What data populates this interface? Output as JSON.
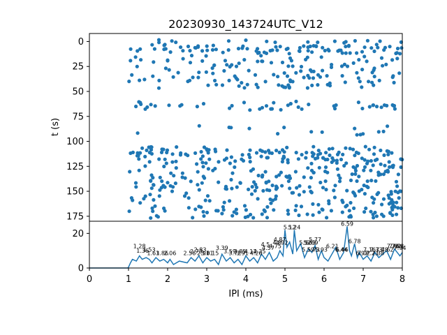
{
  "chart_data": [
    {
      "type": "scatter",
      "title": "20230930_143724UTC_V12",
      "xlabel": "",
      "ylabel": "t (s)",
      "xlim": [
        0,
        8
      ],
      "ylim": [
        180,
        -8
      ],
      "y_inverted": true,
      "yticks": [
        "0",
        "25",
        "50",
        "75",
        "100",
        "125",
        "150",
        "175"
      ],
      "color": "#1f77b4",
      "marker": "filled circle",
      "x_range_of_points": [
        1,
        8
      ],
      "row_bands": [
        {
          "t": 0,
          "density": 0.2
        },
        {
          "t": 5,
          "density": 0.35
        },
        {
          "t": 8,
          "density": 0.45
        },
        {
          "t": 11,
          "density": 0.35
        },
        {
          "t": 16,
          "density": 0.2
        },
        {
          "t": 20,
          "density": 0.25
        },
        {
          "t": 25,
          "density": 0.3
        },
        {
          "t": 30,
          "density": 0.25
        },
        {
          "t": 35,
          "density": 0.3
        },
        {
          "t": 40,
          "density": 0.3
        },
        {
          "t": 45,
          "density": 0.35
        },
        {
          "t": 62,
          "density": 0.2
        },
        {
          "t": 64,
          "density": 0.25
        },
        {
          "t": 67,
          "density": 0.2
        },
        {
          "t": 86,
          "density": 0.08
        },
        {
          "t": 92,
          "density": 0.12
        },
        {
          "t": 107,
          "density": 0.35
        },
        {
          "t": 110,
          "density": 0.4
        },
        {
          "t": 113,
          "density": 0.45
        },
        {
          "t": 117,
          "density": 0.45
        },
        {
          "t": 121,
          "density": 0.4
        },
        {
          "t": 126,
          "density": 0.4
        },
        {
          "t": 131,
          "density": 0.35
        },
        {
          "t": 135,
          "density": 0.35
        },
        {
          "t": 140,
          "density": 0.4
        },
        {
          "t": 145,
          "density": 0.4
        },
        {
          "t": 149,
          "density": 0.35
        },
        {
          "t": 153,
          "density": 0.3
        },
        {
          "t": 158,
          "density": 0.3
        },
        {
          "t": 163,
          "density": 0.3
        },
        {
          "t": 167,
          "density": 0.3
        },
        {
          "t": 171,
          "density": 0.3
        },
        {
          "t": 175,
          "density": 0.3
        }
      ]
    },
    {
      "type": "line",
      "xlabel": "IPI (ms)",
      "ylabel": "",
      "xlim": [
        0,
        8
      ],
      "ylim": [
        0,
        27
      ],
      "xticks": [
        "0",
        "1",
        "2",
        "3",
        "4",
        "5",
        "6",
        "7",
        "8"
      ],
      "yticks": [
        "0",
        "20"
      ],
      "color": "#1f77b4",
      "series": [
        {
          "x": [
            0,
            0.5,
            0.98,
            1.0,
            1.05,
            1.1,
            1.2,
            1.28,
            1.35,
            1.45,
            1.53,
            1.6,
            1.7,
            1.8,
            1.9,
            2.0,
            2.06,
            2.15,
            2.3,
            2.5,
            2.6,
            2.7,
            2.8,
            2.9,
            3.0,
            3.1,
            3.2,
            3.3,
            3.39,
            3.5,
            3.6,
            3.7,
            3.8,
            3.9,
            4.0,
            4.1,
            4.2,
            4.3,
            4.4,
            4.5,
            4.6,
            4.7,
            4.8,
            4.87,
            4.95,
            5.0,
            5.05,
            5.12,
            5.2,
            5.24,
            5.3,
            5.4,
            5.5,
            5.6,
            5.69,
            5.77,
            5.85,
            5.93,
            6.0,
            6.1,
            6.2,
            6.3,
            6.4,
            6.5,
            6.59,
            6.65,
            6.7,
            6.78,
            6.85,
            6.9,
            7.0,
            7.1,
            7.2,
            7.3,
            7.4,
            7.5,
            7.6,
            7.7,
            7.8,
            7.94,
            8.0
          ],
          "values": [
            0,
            0,
            0,
            0.5,
            3,
            5,
            4,
            7,
            5,
            6,
            5,
            3,
            6,
            4,
            5,
            3,
            5,
            2,
            4,
            3,
            6,
            4,
            7,
            3,
            6,
            4,
            5,
            2,
            8,
            4,
            6,
            3,
            5,
            2,
            7,
            4,
            6,
            3,
            8,
            5,
            9,
            4,
            6,
            10,
            7,
            22,
            12,
            15,
            8,
            22,
            10,
            14,
            6,
            11,
            9,
            13,
            5,
            10,
            6,
            4,
            8,
            12,
            5,
            9,
            24,
            10,
            7,
            14,
            6,
            9,
            5,
            7,
            4,
            9,
            6,
            8,
            10,
            5,
            11,
            7,
            9
          ]
        }
      ],
      "peak_labels": [
        {
          "x": 1.28,
          "y": 11,
          "text": "1.28"
        },
        {
          "x": 1.36,
          "y": 8.5,
          "text": "1.36"
        },
        {
          "x": 1.53,
          "y": 9,
          "text": "1.53"
        },
        {
          "x": 1.63,
          "y": 7,
          "text": "1.63"
        },
        {
          "x": 1.86,
          "y": 7,
          "text": "1.86"
        },
        {
          "x": 2.06,
          "y": 7,
          "text": "2.06"
        },
        {
          "x": 2.56,
          "y": 7,
          "text": "2.56"
        },
        {
          "x": 2.73,
          "y": 8,
          "text": "2.73"
        },
        {
          "x": 2.83,
          "y": 9,
          "text": "2.83"
        },
        {
          "x": 2.91,
          "y": 7,
          "text": "2.91"
        },
        {
          "x": 3.01,
          "y": 7,
          "text": "3.01"
        },
        {
          "x": 3.15,
          "y": 7,
          "text": "3.15"
        },
        {
          "x": 3.39,
          "y": 10,
          "text": "3.39"
        },
        {
          "x": 3.59,
          "y": 8,
          "text": "3.59"
        },
        {
          "x": 3.72,
          "y": 7,
          "text": "3.72"
        },
        {
          "x": 3.85,
          "y": 8,
          "text": "3.85"
        },
        {
          "x": 3.91,
          "y": 7,
          "text": "3.91"
        },
        {
          "x": 4.12,
          "y": 8,
          "text": "4.12"
        },
        {
          "x": 4.26,
          "y": 7,
          "text": "4.26"
        },
        {
          "x": 4.35,
          "y": 8,
          "text": "4.35"
        },
        {
          "x": 4.5,
          "y": 12,
          "text": "4.5"
        },
        {
          "x": 4.57,
          "y": 10,
          "text": "4.57"
        },
        {
          "x": 4.75,
          "y": 11,
          "text": "4.75"
        },
        {
          "x": 4.8,
          "y": 13,
          "text": "4.8"
        },
        {
          "x": 4.87,
          "y": 15,
          "text": "4.87"
        },
        {
          "x": 4.92,
          "y": 13,
          "text": "4.92"
        },
        {
          "x": 5.12,
          "y": 22,
          "text": "5.12"
        },
        {
          "x": 5.24,
          "y": 22,
          "text": "5.24"
        },
        {
          "x": 5.52,
          "y": 13,
          "text": "5.52"
        },
        {
          "x": 5.63,
          "y": 13,
          "text": "5.63"
        },
        {
          "x": 5.69,
          "y": 13,
          "text": "5.69"
        },
        {
          "x": 5.77,
          "y": 15,
          "text": "5.77"
        },
        {
          "x": 5.59,
          "y": 9,
          "text": "5.59"
        },
        {
          "x": 5.73,
          "y": 9,
          "text": "5.73"
        },
        {
          "x": 5.93,
          "y": 9,
          "text": "5.93"
        },
        {
          "x": 6.21,
          "y": 11,
          "text": "6.21"
        },
        {
          "x": 6.44,
          "y": 9,
          "text": "6.44"
        },
        {
          "x": 6.46,
          "y": 9,
          "text": "6.46"
        },
        {
          "x": 6.59,
          "y": 24,
          "text": "6.59"
        },
        {
          "x": 6.78,
          "y": 14,
          "text": "6.78"
        },
        {
          "x": 6.97,
          "y": 7,
          "text": "6.97"
        },
        {
          "x": 7.02,
          "y": 7,
          "text": "7.02"
        },
        {
          "x": 7.16,
          "y": 9,
          "text": "7.16"
        },
        {
          "x": 7.23,
          "y": 7,
          "text": "7.23"
        },
        {
          "x": 7.33,
          "y": 9,
          "text": "7.33"
        },
        {
          "x": 7.38,
          "y": 7,
          "text": "7.38"
        },
        {
          "x": 7.48,
          "y": 9,
          "text": "7.48"
        },
        {
          "x": 7.62,
          "y": 9,
          "text": "7.62"
        },
        {
          "x": 7.76,
          "y": 11,
          "text": "7.76"
        },
        {
          "x": 7.82,
          "y": 11,
          "text": "7.82"
        },
        {
          "x": 7.88,
          "y": 11,
          "text": "7.88"
        },
        {
          "x": 7.94,
          "y": 10,
          "text": "7.94"
        }
      ]
    }
  ]
}
